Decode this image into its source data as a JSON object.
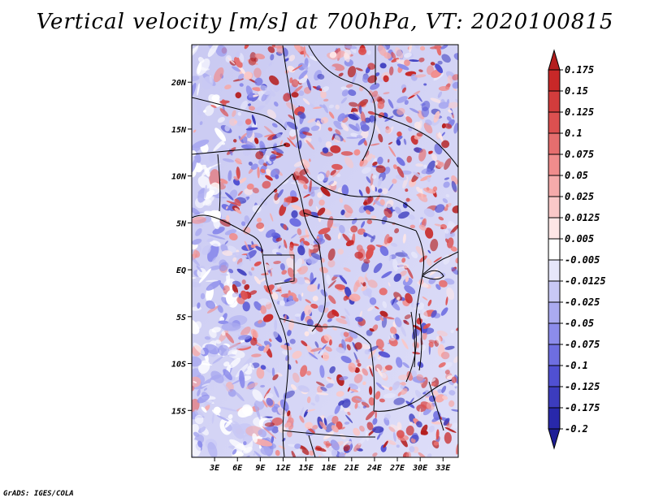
{
  "title": "Vertical velocity [m/s] at 700hPa, VT: 2020100815",
  "footer": "GrADS: IGES/COLA",
  "map": {
    "lon_range": [
      0,
      35
    ],
    "lat_range": [
      -20,
      24
    ],
    "lat_ticks": [
      {
        "value": 20,
        "label": "20N"
      },
      {
        "value": 15,
        "label": "15N"
      },
      {
        "value": 10,
        "label": "10N"
      },
      {
        "value": 5,
        "label": "5N"
      },
      {
        "value": 0,
        "label": "EQ"
      },
      {
        "value": -5,
        "label": "5S"
      },
      {
        "value": -10,
        "label": "10S"
      },
      {
        "value": -15,
        "label": "15S"
      }
    ],
    "lon_ticks": [
      {
        "value": 3,
        "label": "3E"
      },
      {
        "value": 6,
        "label": "6E"
      },
      {
        "value": 9,
        "label": "9E"
      },
      {
        "value": 12,
        "label": "12E"
      },
      {
        "value": 15,
        "label": "15E"
      },
      {
        "value": 18,
        "label": "18E"
      },
      {
        "value": 21,
        "label": "21E"
      },
      {
        "value": 24,
        "label": "24E"
      },
      {
        "value": 27,
        "label": "27E"
      },
      {
        "value": 30,
        "label": "30E"
      },
      {
        "value": 33,
        "label": "33E"
      }
    ]
  },
  "colorbar": {
    "labels": [
      "0.175",
      "0.15",
      "0.125",
      "0.1",
      "0.075",
      "0.05",
      "0.025",
      "0.0125",
      "0.005",
      "-0.005",
      "-0.0125",
      "-0.025",
      "-0.05",
      "-0.075",
      "-0.1",
      "-0.125",
      "-0.175",
      "-0.2"
    ],
    "colors": [
      "#b41e1e",
      "#c82828",
      "#d23c3c",
      "#dc5050",
      "#e66e6e",
      "#f08c8c",
      "#f5aaaa",
      "#fac8c8",
      "#fde6e6",
      "#ffffff",
      "#e6e6fa",
      "#c8c8f5",
      "#aaaaf0",
      "#8c8ceb",
      "#6e6ee1",
      "#5050d2",
      "#3c3cbe",
      "#2828aa",
      "#1e1e96"
    ]
  }
}
